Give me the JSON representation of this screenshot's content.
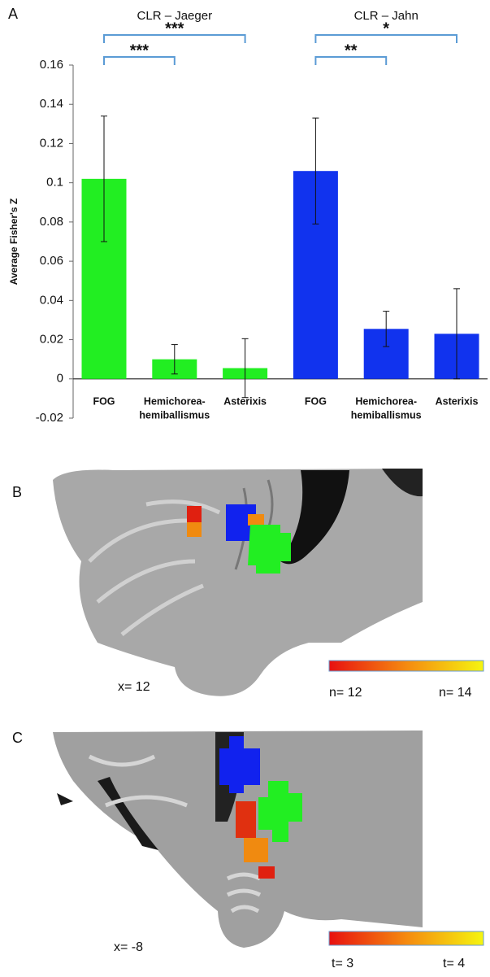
{
  "chart_data": {
    "type": "bar",
    "panel_label": "A",
    "y_label": "Average Fisher's Z",
    "ylim": [
      -0.02,
      0.16
    ],
    "yticks": [
      -0.02,
      0,
      0.02,
      0.04,
      0.06,
      0.08,
      0.1,
      0.12,
      0.14,
      0.16
    ],
    "groups": [
      {
        "name": "CLR – Jaeger",
        "color": "#22ee22",
        "categories": [
          [
            "FOG"
          ],
          [
            "Hemichorea-",
            "hemiballismus"
          ],
          [
            "Asterixis"
          ]
        ],
        "values": [
          0.102,
          0.01,
          0.0055
        ],
        "errors": [
          0.032,
          0.0075,
          0.015
        ],
        "significance": [
          "***",
          "***"
        ]
      },
      {
        "name": "CLR – Jahn",
        "color": "#1133ee",
        "categories": [
          [
            "FOG"
          ],
          [
            "Hemichorea-",
            "hemiballismus"
          ],
          [
            "Asterixis"
          ]
        ],
        "values": [
          0.106,
          0.0255,
          0.023
        ],
        "errors": [
          0.027,
          0.009,
          0.023
        ],
        "significance": [
          "**",
          "*"
        ]
      }
    ]
  },
  "panel_b": {
    "label": "B",
    "coordinate": "x= 12",
    "scale_min": "n= 12",
    "scale_max": "n= 14"
  },
  "panel_c": {
    "label": "C",
    "coordinate": "x= -8",
    "scale_min": "t= 3",
    "scale_max": "t= 4"
  }
}
